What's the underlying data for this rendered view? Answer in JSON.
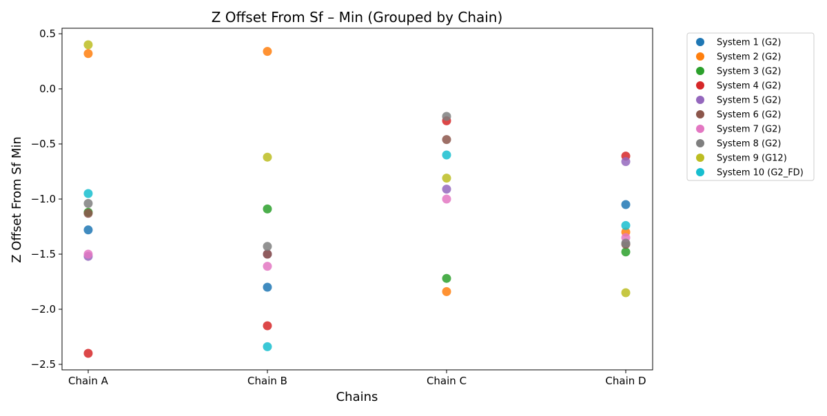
{
  "chart_data": {
    "type": "scatter",
    "title": "Z Offset From Sf – Min (Grouped by Chain)",
    "xlabel": "Chains",
    "ylabel": "Z Offset From Sf Min",
    "categories": [
      "Chain A",
      "Chain B",
      "Chain C",
      "Chain D"
    ],
    "ylim": [
      -2.55,
      0.55
    ],
    "yticks": [
      -2.5,
      -2.0,
      -1.5,
      -1.0,
      -0.5,
      0.0,
      0.5
    ],
    "ytick_labels": [
      "−2.5",
      "−2.0",
      "−1.5",
      "−1.0",
      "−0.5",
      "0.0",
      "0.5"
    ],
    "grid": false,
    "legend_position": "outside-right",
    "series": [
      {
        "name": "System 1 (G2)",
        "color": "#1f77b4",
        "values": [
          -1.28,
          -1.8,
          null,
          -1.05
        ]
      },
      {
        "name": "System 2 (G2)",
        "color": "#ff7f0e",
        "values": [
          0.32,
          0.34,
          -1.84,
          -1.3
        ]
      },
      {
        "name": "System 3 (G2)",
        "color": "#2ca02c",
        "values": [
          -1.12,
          -1.09,
          -1.72,
          -1.48
        ]
      },
      {
        "name": "System 4 (G2)",
        "color": "#d62728",
        "values": [
          -2.4,
          -2.15,
          -0.29,
          -0.61
        ]
      },
      {
        "name": "System 5 (G2)",
        "color": "#9467bd",
        "values": [
          -1.52,
          -1.5,
          -0.91,
          -0.66
        ]
      },
      {
        "name": "System 6 (G2)",
        "color": "#8c564b",
        "values": [
          -1.13,
          -1.5,
          -0.46,
          -1.41
        ]
      },
      {
        "name": "System 7 (G2)",
        "color": "#e377c2",
        "values": [
          -1.5,
          -1.61,
          -1.0,
          -1.35
        ]
      },
      {
        "name": "System 8 (G2)",
        "color": "#7f7f7f",
        "values": [
          -1.04,
          -1.43,
          -0.25,
          -1.4
        ]
      },
      {
        "name": "System 9 (G12)",
        "color": "#bcbd22",
        "values": [
          0.4,
          -0.62,
          -0.81,
          -1.85
        ]
      },
      {
        "name": "System 10 (G2_FD)",
        "color": "#17becf",
        "values": [
          -0.95,
          -2.34,
          -0.6,
          -1.24
        ]
      }
    ]
  }
}
